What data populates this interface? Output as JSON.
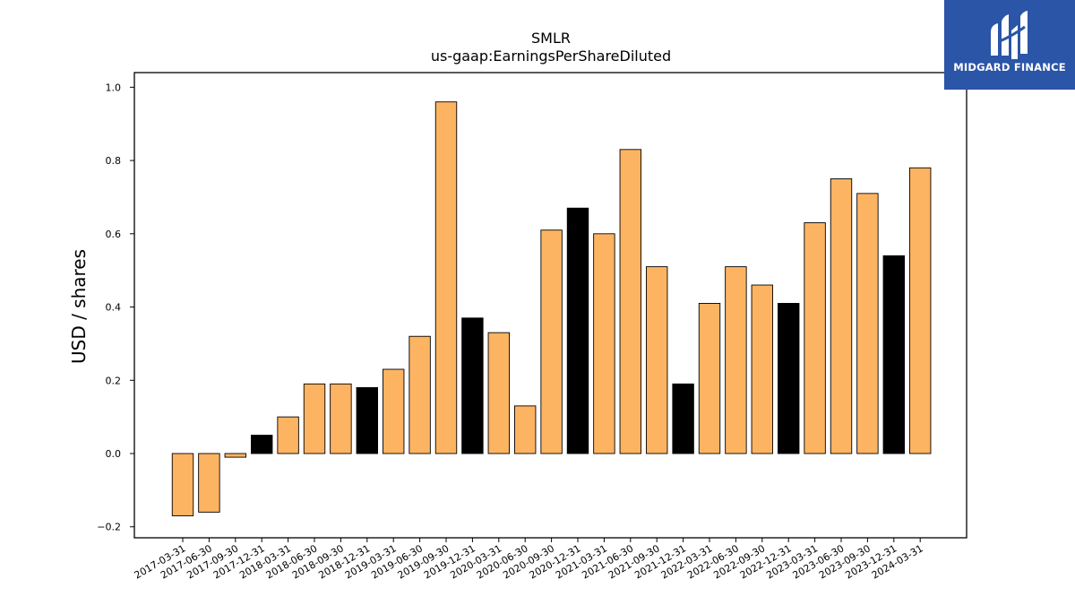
{
  "logo": {
    "text": "MIDGARD FINANCE",
    "icon": "midgard-logo-icon",
    "background_color": "#2b55a7"
  },
  "chart_data": {
    "type": "bar",
    "title": "SMLR",
    "subtitle": "us-gaap:EarningsPerShareDiluted",
    "xlabel": "",
    "ylabel": "USD / shares",
    "ylim": [
      -0.23,
      1.04
    ],
    "yticks": [
      -0.2,
      0.0,
      0.2,
      0.4,
      0.6,
      0.8,
      1.0
    ],
    "ytick_labels": [
      "−0.2",
      "0.0",
      "0.2",
      "0.4",
      "0.6",
      "0.8",
      "1.0"
    ],
    "grid": false,
    "legend": "none",
    "colors": {
      "quarter": "#fdb462",
      "year_end": "#000000",
      "edge": "#000000"
    },
    "categories": [
      "2017-03-31",
      "2017-06-30",
      "2017-09-30",
      "2017-12-31",
      "2018-03-31",
      "2018-06-30",
      "2018-09-30",
      "2018-12-31",
      "2019-03-31",
      "2019-06-30",
      "2019-09-30",
      "2019-12-31",
      "2020-03-31",
      "2020-06-30",
      "2020-09-30",
      "2020-12-31",
      "2021-03-31",
      "2021-06-30",
      "2021-09-30",
      "2021-12-31",
      "2022-03-31",
      "2022-06-30",
      "2022-09-30",
      "2022-12-31",
      "2023-03-31",
      "2023-06-30",
      "2023-09-30",
      "2023-12-31",
      "2024-03-31"
    ],
    "values": [
      -0.17,
      -0.16,
      -0.01,
      0.05,
      0.1,
      0.19,
      0.19,
      0.18,
      0.23,
      0.32,
      0.96,
      0.37,
      0.33,
      0.13,
      0.61,
      0.67,
      0.6,
      0.83,
      0.51,
      0.19,
      0.41,
      0.51,
      0.46,
      0.41,
      0.63,
      0.75,
      0.71,
      0.54,
      0.78
    ],
    "highlight": [
      false,
      false,
      false,
      true,
      false,
      false,
      false,
      true,
      false,
      false,
      false,
      true,
      false,
      false,
      false,
      true,
      false,
      false,
      false,
      true,
      false,
      false,
      false,
      true,
      false,
      false,
      false,
      true,
      false
    ]
  }
}
